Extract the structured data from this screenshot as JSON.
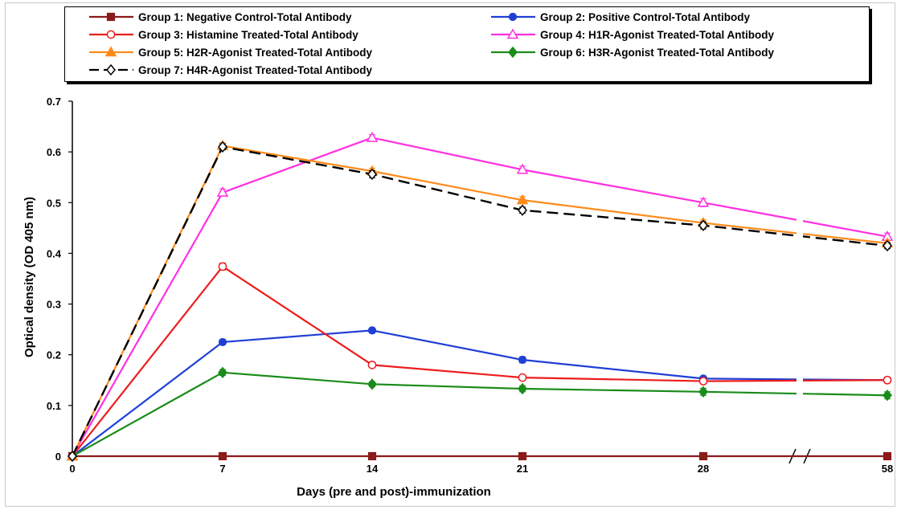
{
  "chart_data": {
    "type": "line",
    "title": "",
    "xlabel": "Days (pre and post)-immunization",
    "ylabel": "Optical density (OD 405 nm)",
    "ylim": [
      0,
      0.7
    ],
    "x": [
      0,
      7,
      14,
      21,
      28,
      58
    ],
    "x_tick_labels": [
      "0",
      "7",
      "14",
      "21",
      "28",
      "58"
    ],
    "x_axis_break": "between 28 and 58",
    "y_ticks": [
      0,
      0.1,
      0.2,
      0.3,
      0.4,
      0.5,
      0.6,
      0.7
    ],
    "y_tick_labels": [
      "0",
      "0.1",
      "0.2",
      "0.3",
      "0.4",
      "0.5",
      "0.6",
      "0.7"
    ],
    "grid": false,
    "legend_placement": "top",
    "series": [
      {
        "name": "Group 1: Negative Control-Total Antibody",
        "color": "#8b1a1a",
        "marker": "square-filled",
        "dash": false,
        "values": [
          0,
          0,
          0,
          0,
          0,
          0
        ],
        "errors": [
          0,
          0,
          0,
          0,
          0,
          0
        ]
      },
      {
        "name": "Group 2: Positive Control-Total Antibody",
        "color": "#1f3fd6",
        "marker": "circle-filled",
        "dash": false,
        "values": [
          0,
          0.225,
          0.248,
          0.19,
          0.153,
          0.15
        ],
        "errors": [
          0,
          0.005,
          0.005,
          0.006,
          0.005,
          0.005
        ]
      },
      {
        "name": "Group 3: Histamine Treated-Total Antibody",
        "color": "#ee1c1c",
        "marker": "circle-open",
        "dash": false,
        "values": [
          0,
          0.374,
          0.18,
          0.155,
          0.148,
          0.15
        ],
        "errors": [
          0,
          0.007,
          0.005,
          0.004,
          0.004,
          0.006
        ]
      },
      {
        "name": "Group 4: H1R-Agonist Treated-Total Antibody",
        "color": "#ff30e0",
        "marker": "triangle-open",
        "dash": false,
        "values": [
          0,
          0.52,
          0.628,
          0.565,
          0.5,
          0.433
        ],
        "errors": [
          0,
          0.007,
          0.006,
          0.007,
          0.008,
          0.007
        ]
      },
      {
        "name": "Group 5: H2R-Agonist Treated-Total Antibody",
        "color": "#ff8a1a",
        "marker": "triangle-filled",
        "dash": false,
        "values": [
          0,
          0.612,
          0.562,
          0.505,
          0.46,
          0.42
        ],
        "errors": [
          0,
          0.006,
          0.006,
          0.007,
          0.006,
          0.005
        ]
      },
      {
        "name": "Group 6: H3R-Agonist Treated-Total Antibody",
        "color": "#1a8c1a",
        "marker": "diamond-filled",
        "dash": false,
        "values": [
          0,
          0.165,
          0.142,
          0.133,
          0.127,
          0.12
        ],
        "errors": [
          0,
          0.006,
          0.005,
          0.006,
          0.007,
          0.007
        ]
      },
      {
        "name": "Group 7: H4R-Agonist Treated-Total Antibody",
        "color": "#000000",
        "marker": "diamond-open",
        "dash": true,
        "values": [
          0,
          0.61,
          0.556,
          0.485,
          0.455,
          0.415
        ],
        "errors": [
          0,
          0.006,
          0.007,
          0.006,
          0.007,
          0.006
        ]
      }
    ]
  }
}
